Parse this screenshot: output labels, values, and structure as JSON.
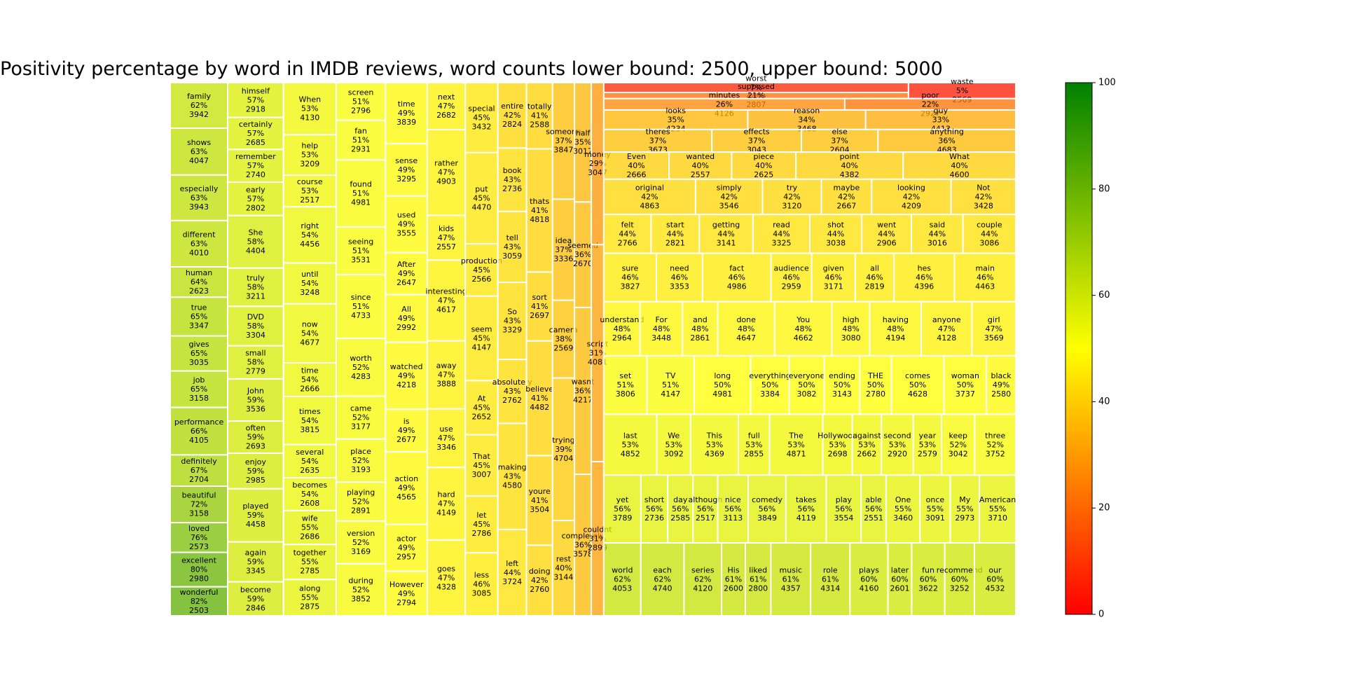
{
  "chart_data": {
    "type": "treemap",
    "title": "Positivity percentage by word in IMDB reviews, word counts lower bound: 2500, upper bound: 5000",
    "colorbar": {
      "min": 0,
      "max": 100,
      "ticks": [
        0,
        20,
        40,
        60,
        80,
        100
      ],
      "colors": [
        "#ff0000",
        "#ffff00",
        "#008000"
      ]
    },
    "columns": [
      [
        [
          "family",
          62,
          3942
        ],
        [
          "shows",
          63,
          4047
        ],
        [
          "especially",
          63,
          3943
        ],
        [
          "different",
          63,
          4010
        ],
        [
          "human",
          64,
          2623
        ],
        [
          "true",
          65,
          3347
        ],
        [
          "gives",
          65,
          3035
        ],
        [
          "job",
          65,
          3158
        ],
        [
          "performance",
          66,
          4105
        ],
        [
          "definitely",
          67,
          2704
        ],
        [
          "beautiful",
          72,
          3158
        ],
        [
          "loved",
          76,
          2573
        ],
        [
          "excellent",
          80,
          2980
        ],
        [
          "wonderful",
          82,
          2503
        ]
      ],
      [
        [
          "himself",
          57,
          2918
        ],
        [
          "certainly",
          57,
          2685
        ],
        [
          "remember",
          57,
          2740
        ],
        [
          "early",
          57,
          2802
        ],
        [
          "She",
          58,
          4404
        ],
        [
          "truly",
          58,
          3211
        ],
        [
          "DVD",
          58,
          3304
        ],
        [
          "small",
          58,
          2779
        ],
        [
          "John",
          59,
          3536
        ],
        [
          "often",
          59,
          2693
        ],
        [
          "enjoy",
          59,
          2985
        ],
        [
          "played",
          59,
          4458
        ],
        [
          "again",
          59,
          3345
        ],
        [
          "become",
          59,
          2846
        ]
      ],
      [
        [
          "When",
          53,
          4130
        ],
        [
          "help",
          53,
          3209
        ],
        [
          "course",
          53,
          2517
        ],
        [
          "right",
          54,
          4456
        ],
        [
          "until",
          54,
          3248
        ],
        [
          "now",
          54,
          4677
        ],
        [
          "time",
          54,
          2666
        ],
        [
          "times",
          54,
          3815
        ],
        [
          "several",
          54,
          2635
        ],
        [
          "becomes",
          54,
          2608
        ],
        [
          "wife",
          55,
          2686
        ],
        [
          "together",
          55,
          2785
        ],
        [
          "along",
          55,
          2875
        ]
      ],
      [
        [
          "screen",
          51,
          2796
        ],
        [
          "fan",
          51,
          2931
        ],
        [
          "found",
          51,
          4981
        ],
        [
          "seeing",
          51,
          3531
        ],
        [
          "since",
          51,
          4733
        ],
        [
          "worth",
          52,
          4283
        ],
        [
          "came",
          52,
          3177
        ],
        [
          "place",
          52,
          3193
        ],
        [
          "playing",
          52,
          2891
        ],
        [
          "version",
          52,
          3169
        ],
        [
          "during",
          52,
          3852
        ]
      ],
      [
        [
          "time",
          49,
          3839
        ],
        [
          "sense",
          49,
          3295
        ],
        [
          "used",
          49,
          3555
        ],
        [
          "After",
          49,
          2647
        ],
        [
          "All",
          49,
          2992
        ],
        [
          "watched",
          49,
          4218
        ],
        [
          "is",
          49,
          2677
        ],
        [
          "action",
          49,
          4565
        ],
        [
          "actor",
          49,
          2957
        ],
        [
          "However",
          49,
          2794
        ]
      ],
      [
        [
          "next",
          47,
          2682
        ],
        [
          "rather",
          47,
          4903
        ],
        [
          "kids",
          47,
          2557
        ],
        [
          "interesting",
          47,
          4617
        ],
        [
          "away",
          47,
          3888
        ],
        [
          "use",
          47,
          3346
        ],
        [
          "hard",
          47,
          4149
        ],
        [
          "goes",
          47,
          4328
        ]
      ],
      [
        [
          "special",
          45,
          3432
        ],
        [
          "put",
          45,
          4470
        ],
        [
          "production",
          45,
          2566
        ],
        [
          "seem",
          45,
          4147
        ],
        [
          "At",
          45,
          2652
        ],
        [
          "That",
          45,
          3007
        ],
        [
          "let",
          45,
          2786
        ],
        [
          "less",
          46,
          3085
        ]
      ],
      [
        [
          "entire",
          42,
          2824
        ],
        [
          "book",
          43,
          2736
        ],
        [
          "tell",
          43,
          3059
        ],
        [
          "So",
          43,
          3329
        ],
        [
          "absolutely",
          43,
          2762
        ],
        [
          "making",
          43,
          4580
        ],
        [
          "left",
          44,
          3724
        ]
      ],
      [
        [
          "totally",
          41,
          2588
        ],
        [
          "thats",
          41,
          4818
        ],
        [
          "sort",
          41,
          2697
        ],
        [
          "believe",
          41,
          4482
        ],
        [
          "youre",
          41,
          3504
        ],
        [
          "doing",
          42,
          2760
        ]
      ],
      [
        [
          "someone",
          37,
          3847
        ],
        [
          "idea",
          37,
          3336
        ],
        [
          "camera",
          38,
          2569
        ],
        [
          "trying",
          39,
          4704
        ],
        [
          "rest",
          40,
          3144
        ]
      ],
      [
        [
          "half",
          35,
          3017
        ],
        [
          "seemed",
          36,
          2670
        ],
        [
          "wasnt",
          36,
          4217
        ],
        [
          "completely",
          36,
          3578
        ]
      ],
      [
        [
          "money",
          29,
          3047
        ],
        [
          "script",
          31,
          4081
        ],
        [
          "couldnt",
          31,
          2899
        ]
      ]
    ],
    "blocks": [
      {
        "words": [
          [
            "worst",
            7,
            4490
          ],
          [
            "supposed",
            21,
            2807
          ]
        ],
        "side": [
          "waste",
          5,
          2569
        ]
      },
      {
        "row": [
          [
            "minutes",
            26,
            4126
          ],
          [
            "poor",
            22,
            2927
          ]
        ]
      },
      {
        "row": [
          [
            "looks",
            35,
            4234
          ],
          [
            "reason",
            34,
            3468
          ],
          [
            "guy",
            33,
            4413
          ]
        ]
      },
      {
        "row": [
          [
            "theres",
            37,
            3673
          ],
          [
            "effects",
            37,
            3043
          ],
          [
            "else",
            37,
            2604
          ],
          [
            "anything",
            36,
            4683
          ]
        ]
      },
      {
        "row": [
          [
            "Even",
            40,
            2666
          ],
          [
            "wanted",
            40,
            2557
          ],
          [
            "piece",
            40,
            2625
          ],
          [
            "point",
            40,
            4382
          ],
          [
            "What",
            40,
            4600
          ]
        ]
      },
      {
        "row": [
          [
            "original",
            42,
            4863
          ],
          [
            "simply",
            42,
            3546
          ],
          [
            "try",
            42,
            3120
          ],
          [
            "maybe",
            42,
            2667
          ],
          [
            "looking",
            42,
            4209
          ],
          [
            "Not",
            42,
            3428
          ]
        ]
      },
      {
        "row": [
          [
            "felt",
            44,
            2766
          ],
          [
            "start",
            44,
            2821
          ],
          [
            "getting",
            44,
            3141
          ],
          [
            "read",
            44,
            3325
          ],
          [
            "shot",
            44,
            3038
          ],
          [
            "went",
            44,
            2906
          ],
          [
            "said",
            44,
            3016
          ],
          [
            "couple",
            44,
            3086
          ]
        ]
      },
      {
        "row": [
          [
            "sure",
            46,
            3827
          ],
          [
            "need",
            46,
            3353
          ],
          [
            "fact",
            46,
            4986
          ],
          [
            "audience",
            46,
            2959
          ],
          [
            "given",
            46,
            3171
          ],
          [
            "all",
            46,
            2819
          ],
          [
            "hes",
            46,
            4396
          ],
          [
            "main",
            46,
            4463
          ]
        ]
      },
      {
        "row": [
          [
            "understand",
            48,
            2964
          ],
          [
            "For",
            48,
            3448
          ],
          [
            "and",
            48,
            2861
          ],
          [
            "done",
            48,
            4647
          ],
          [
            "You",
            48,
            4662
          ],
          [
            "high",
            48,
            3080
          ],
          [
            "having",
            48,
            4194
          ],
          [
            "anyone",
            47,
            4128
          ],
          [
            "girl",
            47,
            3569
          ]
        ]
      },
      {
        "row": [
          [
            "set",
            51,
            3806
          ],
          [
            "TV",
            51,
            4147
          ],
          [
            "long",
            50,
            4981
          ],
          [
            "everything",
            50,
            3384
          ],
          [
            "everyone",
            50,
            3082
          ],
          [
            "ending",
            50,
            3143
          ],
          [
            "THE",
            50,
            2780
          ],
          [
            "comes",
            50,
            4628
          ],
          [
            "woman",
            50,
            3737
          ],
          [
            "black",
            49,
            2580
          ]
        ]
      },
      {
        "row": [
          [
            "last",
            53,
            4852
          ],
          [
            "We",
            53,
            3092
          ],
          [
            "This",
            53,
            4369
          ],
          [
            "full",
            53,
            2855
          ],
          [
            "The",
            53,
            4871
          ],
          [
            "Hollywood",
            53,
            2698
          ],
          [
            "against",
            53,
            2662
          ],
          [
            "second",
            53,
            2920
          ],
          [
            "year",
            53,
            2579
          ],
          [
            "keep",
            52,
            3042
          ],
          [
            "three",
            52,
            3752
          ]
        ]
      },
      {
        "row": [
          [
            "yet",
            56,
            3789
          ],
          [
            "short",
            56,
            2736
          ],
          [
            "day",
            56,
            2585
          ],
          [
            "although",
            56,
            2517
          ],
          [
            "nice",
            56,
            3113
          ],
          [
            "comedy",
            56,
            3849
          ],
          [
            "takes",
            56,
            4119
          ],
          [
            "play",
            56,
            3554
          ],
          [
            "able",
            56,
            2551
          ],
          [
            "One",
            55,
            3460
          ],
          [
            "once",
            55,
            3091
          ],
          [
            "My",
            55,
            2973
          ],
          [
            "American",
            55,
            3710
          ]
        ]
      },
      {
        "row": [
          [
            "world",
            62,
            4053
          ],
          [
            "each",
            62,
            4740
          ],
          [
            "series",
            62,
            4120
          ],
          [
            "His",
            61,
            2600
          ],
          [
            "liked",
            61,
            2800
          ],
          [
            "music",
            61,
            4357
          ],
          [
            "role",
            61,
            4314
          ],
          [
            "plays",
            60,
            4160
          ],
          [
            "later",
            60,
            2601
          ],
          [
            "fun",
            60,
            3622
          ],
          [
            "recommend",
            60,
            3252
          ],
          [
            "our",
            60,
            4532
          ]
        ]
      }
    ]
  }
}
